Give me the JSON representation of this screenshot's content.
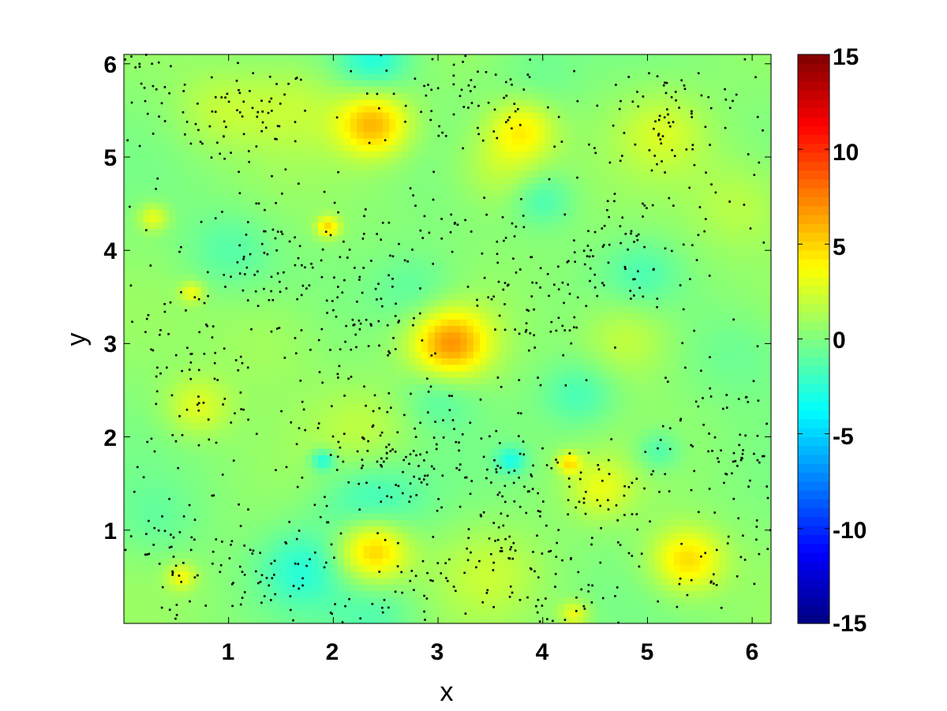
{
  "chart_data": {
    "type": "heatmap",
    "title": "",
    "xlabel": "x",
    "ylabel": "y",
    "xlim": [
      0,
      6.18
    ],
    "ylim": [
      0,
      6.1
    ],
    "x_ticks": [
      1,
      2,
      3,
      4,
      5,
      6
    ],
    "x_tick_labels": [
      "1",
      "2",
      "3",
      "4",
      "5",
      "6"
    ],
    "y_ticks": [
      1,
      2,
      3,
      4,
      5,
      6
    ],
    "y_tick_labels": [
      "1",
      "2",
      "3",
      "4",
      "5",
      "6"
    ],
    "colorbar": {
      "colormap": "jet",
      "range": [
        -15,
        15
      ],
      "ticks": [
        -15,
        -10,
        -5,
        0,
        5,
        10,
        15
      ],
      "tick_labels": [
        "-15",
        "-10",
        "-5",
        "0",
        "5",
        "10",
        "15"
      ]
    },
    "background_value": 0.3,
    "field_blobs": [
      {
        "x": 2.38,
        "y": 5.35,
        "value": 5.5,
        "radius": 0.24
      },
      {
        "x": 3.8,
        "y": 5.3,
        "value": 3.5,
        "radius": 0.22
      },
      {
        "x": 3.12,
        "y": 3.0,
        "value": 6.5,
        "radius": 0.26
      },
      {
        "x": 2.38,
        "y": 0.78,
        "value": 5.5,
        "radius": 0.24
      },
      {
        "x": 5.38,
        "y": 0.68,
        "value": 4.5,
        "radius": 0.24
      },
      {
        "x": 0.7,
        "y": 2.32,
        "value": 2.5,
        "radius": 0.22
      },
      {
        "x": 1.95,
        "y": 4.25,
        "value": 4.5,
        "radius": 0.08
      },
      {
        "x": 0.28,
        "y": 4.35,
        "value": 3.0,
        "radius": 0.1
      },
      {
        "x": 0.55,
        "y": 0.5,
        "value": 3.0,
        "radius": 0.1
      },
      {
        "x": 4.25,
        "y": 1.72,
        "value": 4.0,
        "radius": 0.08
      },
      {
        "x": 4.3,
        "y": 0.1,
        "value": 3.0,
        "radius": 0.1
      },
      {
        "x": 3.6,
        "y": 4.9,
        "value": 2.0,
        "radius": 0.3
      },
      {
        "x": 5.15,
        "y": 5.25,
        "value": 2.0,
        "radius": 0.3
      },
      {
        "x": 2.3,
        "y": 2.05,
        "value": 1.5,
        "radius": 0.35
      },
      {
        "x": 4.8,
        "y": 3.05,
        "value": 2.0,
        "radius": 0.3
      },
      {
        "x": 4.55,
        "y": 1.45,
        "value": 2.5,
        "radius": 0.22
      },
      {
        "x": 5.9,
        "y": 4.5,
        "value": 1.5,
        "radius": 0.35
      },
      {
        "x": 1.6,
        "y": 5.55,
        "value": 1.5,
        "radius": 0.35
      },
      {
        "x": 0.65,
        "y": 3.55,
        "value": 3.0,
        "radius": 0.08
      },
      {
        "x": 3.5,
        "y": 0.55,
        "value": 1.5,
        "radius": 0.35
      },
      {
        "x": 1.4,
        "y": 3.05,
        "value": 1.0,
        "radius": 0.4
      },
      {
        "x": 0.9,
        "y": 5.5,
        "value": 1.5,
        "radius": 0.3
      },
      {
        "x": 2.4,
        "y": 0.1,
        "value": -1.5,
        "radius": 0.3
      },
      {
        "x": 2.35,
        "y": 1.3,
        "value": -2.5,
        "radius": 0.35
      },
      {
        "x": 1.7,
        "y": 0.58,
        "value": -2.5,
        "radius": 0.28
      },
      {
        "x": 2.38,
        "y": 6.05,
        "value": -3.0,
        "radius": 0.25
      },
      {
        "x": 1.9,
        "y": 1.75,
        "value": -3.5,
        "radius": 0.08
      },
      {
        "x": 3.7,
        "y": 1.75,
        "value": -3.0,
        "radius": 0.1
      },
      {
        "x": 4.35,
        "y": 2.45,
        "value": -2.0,
        "radius": 0.25
      },
      {
        "x": 4.0,
        "y": 4.55,
        "value": -2.0,
        "radius": 0.2
      },
      {
        "x": 2.8,
        "y": 3.55,
        "value": -1.5,
        "radius": 0.3
      },
      {
        "x": 3.0,
        "y": 2.45,
        "value": -1.5,
        "radius": 0.25
      },
      {
        "x": 5.1,
        "y": 1.85,
        "value": -2.0,
        "radius": 0.15
      },
      {
        "x": 1.0,
        "y": 4.0,
        "value": -1.5,
        "radius": 0.3
      },
      {
        "x": 4.95,
        "y": 3.75,
        "value": -1.5,
        "radius": 0.25
      },
      {
        "x": 0.3,
        "y": 1.1,
        "value": -1.0,
        "radius": 0.3
      },
      {
        "x": 5.9,
        "y": 2.9,
        "value": -1.0,
        "radius": 0.35
      },
      {
        "x": 3.95,
        "y": 5.9,
        "value": -0.8,
        "radius": 0.3
      }
    ],
    "particle_clusters": [
      {
        "x": 1.2,
        "y": 5.4,
        "sx": 0.3,
        "sy": 0.3,
        "n": 70
      },
      {
        "x": 3.2,
        "y": 5.6,
        "sx": 0.45,
        "sy": 0.3,
        "n": 65
      },
      {
        "x": 5.2,
        "y": 5.45,
        "sx": 0.5,
        "sy": 0.4,
        "n": 90
      },
      {
        "x": 1.4,
        "y": 3.9,
        "sx": 0.3,
        "sy": 0.35,
        "n": 60
      },
      {
        "x": 2.2,
        "y": 3.2,
        "sx": 0.35,
        "sy": 0.5,
        "n": 90
      },
      {
        "x": 3.9,
        "y": 3.3,
        "sx": 0.35,
        "sy": 0.45,
        "n": 60
      },
      {
        "x": 4.9,
        "y": 4.0,
        "sx": 0.45,
        "sy": 0.35,
        "n": 75
      },
      {
        "x": 0.6,
        "y": 2.6,
        "sx": 0.4,
        "sy": 0.55,
        "n": 85
      },
      {
        "x": 2.6,
        "y": 1.75,
        "sx": 0.55,
        "sy": 0.3,
        "n": 80
      },
      {
        "x": 3.6,
        "y": 1.2,
        "sx": 0.3,
        "sy": 0.45,
        "n": 80
      },
      {
        "x": 4.5,
        "y": 1.3,
        "sx": 0.3,
        "sy": 0.3,
        "n": 50
      },
      {
        "x": 5.8,
        "y": 1.9,
        "sx": 0.3,
        "sy": 0.5,
        "n": 75
      },
      {
        "x": 1.5,
        "y": 0.5,
        "sx": 0.45,
        "sy": 0.35,
        "n": 75
      },
      {
        "x": 0.4,
        "y": 0.8,
        "sx": 0.3,
        "sy": 0.35,
        "n": 45
      },
      {
        "x": 4.2,
        "y": 0.3,
        "sx": 0.3,
        "sy": 0.25,
        "n": 40
      },
      {
        "x": 0.3,
        "y": 5.6,
        "sx": 0.3,
        "sy": 0.3,
        "n": 30
      },
      {
        "x": 3.1,
        "y": 2.1,
        "sx": 0.4,
        "sy": 0.35,
        "n": 40
      },
      {
        "x": 3.1,
        "y": 4.0,
        "sx": 0.6,
        "sy": 0.35,
        "n": 45
      },
      {
        "x": 5.7,
        "y": 0.6,
        "sx": 0.3,
        "sy": 0.3,
        "n": 30
      },
      {
        "x": 3.0,
        "y": 0.3,
        "sx": 0.35,
        "sy": 0.25,
        "n": 30
      }
    ],
    "particle_color": "#000000"
  }
}
